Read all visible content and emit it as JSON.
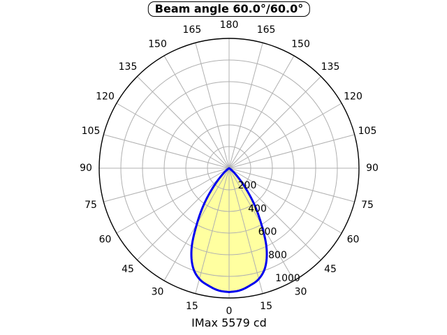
{
  "title": "Beam angle 60.0°/60.0°",
  "footer": "IMax 5579 cd",
  "chart_data": {
    "type": "line",
    "subtype": "polar-intensity-distribution",
    "title": "Beam angle 60.0°/60.0°",
    "beam_angle_c0_deg": 60.0,
    "beam_angle_c90_deg": 60.0,
    "imax_cd": 5579,
    "imax_label": "IMax 5579 cd",
    "orientation": "0 degrees at bottom (nadir), 180 degrees at top",
    "angle_tick_step_deg": 15,
    "angle_tick_labels": [
      0,
      15,
      30,
      45,
      60,
      75,
      90,
      105,
      120,
      135,
      150,
      165,
      180
    ],
    "radial_tick_values": [
      200,
      400,
      600,
      800,
      1000
    ],
    "radial_axis_max": 1200,
    "grid": true,
    "series": [
      {
        "name": "luminous-intensity-curve",
        "symmetric_about_nadir": true,
        "angles_deg": [
          0,
          5,
          10,
          15,
          20,
          25,
          30,
          35,
          40,
          45,
          50,
          55,
          60
        ],
        "intensity": [
          1145,
          1134,
          1102,
          1060,
          975,
          820,
          595,
          400,
          225,
          110,
          45,
          10,
          0
        ]
      }
    ],
    "colors": {
      "curve_stroke": "#0000ee",
      "curve_fill": "#ffffa0",
      "grid_line": "#b0b0b0",
      "outer_circle": "#000000",
      "text": "#000000",
      "background": "#ffffff"
    }
  }
}
